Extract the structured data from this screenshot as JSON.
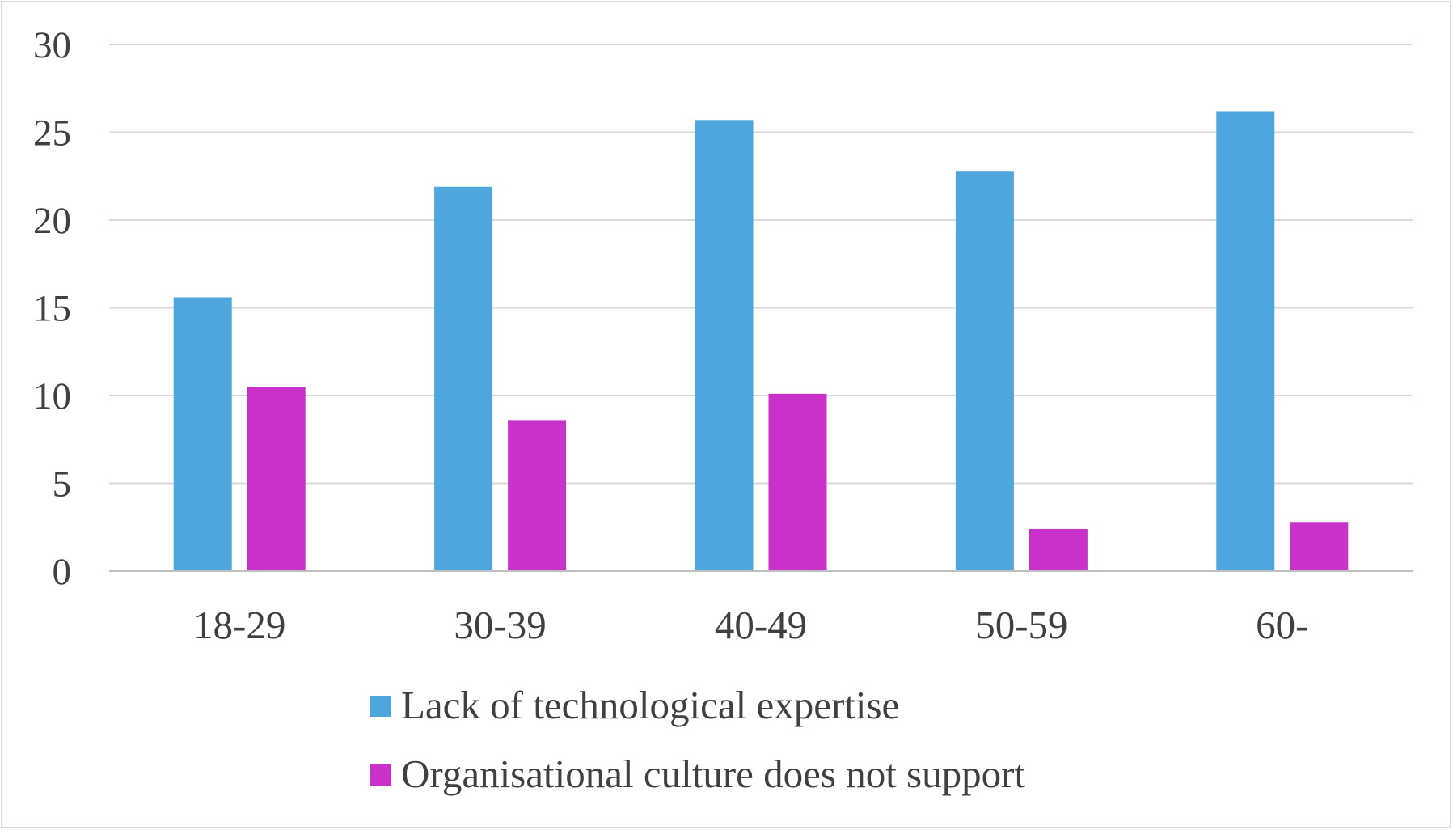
{
  "chart_data": {
    "type": "bar",
    "title": "",
    "xlabel": "",
    "ylabel": "",
    "categories": [
      "18-29",
      "30-39",
      "40-49",
      "50-59",
      "60-"
    ],
    "series": [
      {
        "name": "Lack of technological expertise",
        "color": "#4ea6dc",
        "values": [
          15.6,
          21.9,
          25.7,
          22.8,
          26.2
        ]
      },
      {
        "name": "Organisational culture does not support",
        "color": "#c832c8",
        "values": [
          10.5,
          8.6,
          10.1,
          2.4,
          2.8
        ]
      }
    ],
    "ylim": [
      0,
      30
    ],
    "yticks": [
      0,
      5,
      10,
      15,
      20,
      25,
      30
    ],
    "grid": true,
    "legend": "bottom"
  }
}
